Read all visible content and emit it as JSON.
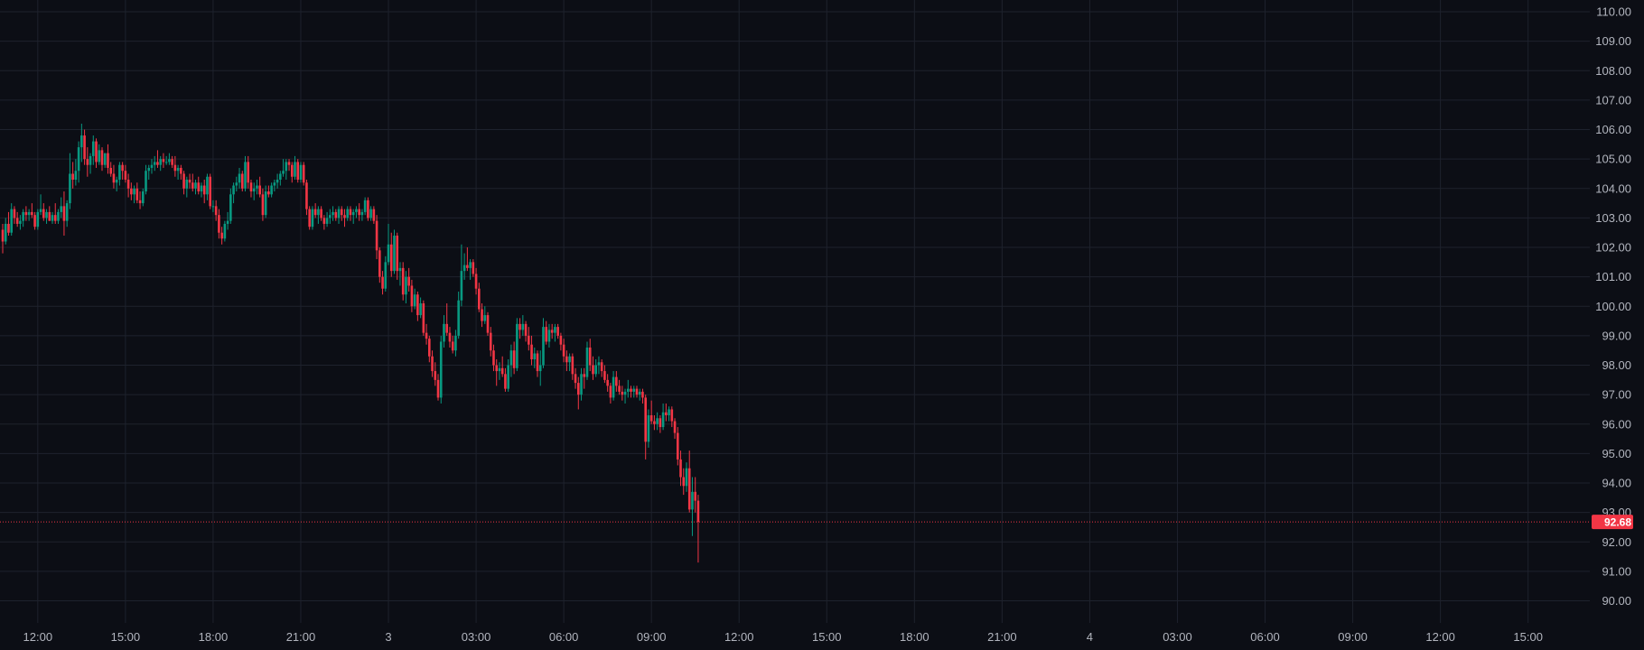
{
  "colors": {
    "background": "#0c0e15",
    "grid": "#1e222d",
    "up": "#089981",
    "down": "#f23645",
    "axis_text": "#b2b5be",
    "last_price_line": "#f23645"
  },
  "last_price": {
    "value": 92.68,
    "label": "92.68"
  },
  "chart_data": {
    "type": "candlestick",
    "ylim": [
      89.25,
      110.4
    ],
    "y_ticks": [
      "90.00",
      "91.00",
      "92.00",
      "93.00",
      "94.00",
      "95.00",
      "96.00",
      "97.00",
      "98.00",
      "99.00",
      "100.00",
      "101.00",
      "102.00",
      "103.00",
      "104.00",
      "105.00",
      "106.00",
      "107.00",
      "108.00",
      "109.00",
      "110.00"
    ],
    "x_ticks": [
      "12:00",
      "15:00",
      "18:00",
      "21:00",
      "3",
      "03:00",
      "06:00",
      "09:00",
      "12:00",
      "15:00",
      "18:00",
      "21:00",
      "4",
      "03:00",
      "06:00",
      "09:00",
      "12:00",
      "15:00"
    ],
    "x_tick_bar_index": [
      12,
      42,
      72,
      102,
      132,
      162,
      192,
      222,
      252,
      282,
      312,
      342,
      372,
      402,
      432,
      462,
      492,
      522
    ],
    "candles": [
      [
        102.6,
        102.8,
        101.8,
        102.2
      ],
      [
        102.2,
        103.0,
        102.1,
        102.8
      ],
      [
        102.8,
        103.2,
        102.4,
        102.5
      ],
      [
        102.5,
        103.5,
        102.4,
        103.3
      ],
      [
        103.3,
        103.4,
        102.8,
        103.0
      ],
      [
        103.0,
        103.2,
        102.7,
        102.8
      ],
      [
        102.8,
        103.1,
        102.6,
        102.9
      ],
      [
        102.9,
        103.3,
        102.7,
        103.2
      ],
      [
        103.2,
        103.4,
        102.9,
        103.1
      ],
      [
        103.1,
        103.3,
        102.9,
        103.2
      ],
      [
        103.2,
        103.5,
        103.0,
        103.1
      ],
      [
        103.1,
        103.2,
        102.6,
        102.7
      ],
      [
        102.7,
        103.3,
        102.6,
        103.2
      ],
      [
        103.2,
        103.8,
        103.1,
        103.3
      ],
      [
        103.3,
        103.5,
        102.9,
        103.0
      ],
      [
        103.0,
        103.3,
        102.8,
        103.2
      ],
      [
        103.2,
        103.4,
        102.9,
        102.9
      ],
      [
        102.9,
        103.2,
        102.8,
        103.1
      ],
      [
        103.1,
        103.5,
        102.8,
        102.9
      ],
      [
        102.9,
        103.3,
        102.8,
        103.2
      ],
      [
        103.2,
        103.7,
        103.0,
        103.4
      ],
      [
        103.4,
        103.9,
        102.4,
        102.9
      ],
      [
        102.9,
        103.6,
        102.7,
        103.5
      ],
      [
        103.5,
        105.2,
        103.3,
        104.5
      ],
      [
        104.5,
        104.9,
        104.0,
        104.3
      ],
      [
        104.3,
        105.0,
        104.1,
        104.6
      ],
      [
        104.6,
        105.6,
        104.2,
        105.4
      ],
      [
        105.4,
        106.2,
        104.9,
        105.8
      ],
      [
        105.8,
        106.0,
        104.8,
        105.0
      ],
      [
        105.0,
        105.4,
        104.4,
        104.8
      ],
      [
        104.8,
        105.2,
        104.5,
        105.1
      ],
      [
        105.1,
        105.8,
        104.8,
        105.6
      ],
      [
        105.6,
        105.7,
        104.7,
        104.9
      ],
      [
        104.9,
        105.5,
        104.8,
        105.3
      ],
      [
        105.3,
        105.4,
        104.6,
        104.8
      ],
      [
        104.8,
        105.2,
        104.7,
        105.2
      ],
      [
        105.2,
        105.5,
        104.5,
        104.7
      ],
      [
        104.7,
        104.9,
        104.4,
        104.5
      ],
      [
        104.5,
        104.8,
        104.0,
        104.2
      ],
      [
        104.2,
        104.4,
        103.9,
        104.3
      ],
      [
        104.3,
        104.9,
        104.1,
        104.8
      ],
      [
        104.8,
        104.9,
        104.3,
        104.6
      ],
      [
        104.6,
        104.8,
        104.2,
        104.3
      ],
      [
        104.3,
        104.5,
        103.7,
        104.0
      ],
      [
        104.0,
        104.2,
        103.6,
        103.8
      ],
      [
        103.8,
        104.1,
        103.5,
        104.0
      ],
      [
        104.0,
        104.2,
        103.5,
        103.6
      ],
      [
        103.6,
        103.9,
        103.3,
        103.5
      ],
      [
        103.5,
        104.0,
        103.4,
        103.9
      ],
      [
        103.9,
        104.8,
        103.8,
        104.6
      ],
      [
        104.6,
        104.8,
        104.3,
        104.7
      ],
      [
        104.7,
        105.0,
        104.5,
        104.8
      ],
      [
        104.8,
        105.1,
        104.6,
        104.9
      ],
      [
        104.9,
        105.3,
        104.7,
        104.8
      ],
      [
        104.8,
        105.1,
        104.6,
        105.0
      ],
      [
        105.0,
        105.2,
        104.7,
        104.9
      ],
      [
        104.9,
        105.1,
        104.8,
        104.9
      ],
      [
        104.9,
        105.2,
        104.8,
        105.0
      ],
      [
        105.0,
        105.1,
        104.7,
        104.8
      ],
      [
        104.8,
        105.1,
        104.4,
        104.6
      ],
      [
        104.6,
        104.8,
        104.3,
        104.7
      ],
      [
        104.7,
        104.8,
        104.3,
        104.5
      ],
      [
        104.5,
        104.6,
        103.8,
        104.0
      ],
      [
        104.0,
        104.4,
        103.7,
        104.3
      ],
      [
        104.3,
        104.5,
        104.0,
        104.2
      ],
      [
        104.2,
        104.5,
        103.9,
        104.0
      ],
      [
        104.0,
        104.3,
        103.8,
        104.2
      ],
      [
        104.2,
        104.4,
        103.8,
        103.9
      ],
      [
        103.9,
        104.2,
        103.7,
        104.1
      ],
      [
        104.1,
        104.3,
        103.5,
        103.8
      ],
      [
        103.8,
        104.5,
        103.6,
        104.4
      ],
      [
        104.4,
        104.5,
        103.3,
        103.4
      ],
      [
        103.4,
        103.6,
        103.2,
        103.4
      ],
      [
        103.4,
        103.6,
        102.9,
        103.1
      ],
      [
        103.1,
        103.3,
        102.3,
        102.5
      ],
      [
        102.5,
        102.7,
        102.1,
        102.3
      ],
      [
        102.3,
        102.9,
        102.2,
        102.8
      ],
      [
        102.8,
        103.2,
        102.6,
        102.9
      ],
      [
        102.9,
        104.0,
        102.8,
        103.8
      ],
      [
        103.8,
        104.2,
        103.5,
        104.1
      ],
      [
        104.1,
        104.4,
        103.9,
        104.2
      ],
      [
        104.2,
        104.7,
        104.0,
        104.5
      ],
      [
        104.5,
        104.6,
        103.9,
        104.0
      ],
      [
        104.0,
        105.1,
        103.9,
        104.9
      ],
      [
        104.9,
        105.1,
        104.0,
        104.2
      ],
      [
        104.2,
        104.3,
        103.7,
        103.9
      ],
      [
        103.9,
        104.2,
        103.6,
        104.0
      ],
      [
        104.0,
        104.3,
        103.8,
        104.1
      ],
      [
        104.1,
        104.4,
        103.7,
        103.8
      ],
      [
        103.8,
        104.0,
        102.9,
        103.1
      ],
      [
        103.1,
        104.1,
        103.0,
        103.9
      ],
      [
        103.9,
        104.1,
        103.7,
        103.8
      ],
      [
        103.8,
        104.2,
        103.7,
        104.1
      ],
      [
        104.1,
        104.3,
        103.9,
        104.2
      ],
      [
        104.2,
        104.5,
        104.0,
        104.3
      ],
      [
        104.3,
        104.6,
        104.1,
        104.5
      ],
      [
        104.5,
        105.0,
        104.4,
        104.6
      ],
      [
        104.6,
        105.0,
        104.3,
        104.9
      ],
      [
        104.9,
        105.0,
        104.6,
        104.8
      ],
      [
        104.8,
        104.9,
        104.2,
        104.4
      ],
      [
        104.4,
        105.1,
        104.3,
        104.9
      ],
      [
        104.9,
        105.0,
        104.2,
        104.3
      ],
      [
        104.3,
        104.9,
        104.2,
        104.8
      ],
      [
        104.8,
        104.9,
        104.1,
        104.2
      ],
      [
        104.2,
        104.3,
        103.1,
        103.3
      ],
      [
        103.3,
        103.4,
        102.6,
        102.7
      ],
      [
        102.7,
        103.4,
        102.6,
        103.3
      ],
      [
        103.3,
        103.5,
        103.0,
        103.1
      ],
      [
        103.1,
        103.4,
        102.8,
        103.3
      ],
      [
        103.3,
        103.4,
        102.9,
        103.0
      ],
      [
        103.0,
        103.1,
        102.6,
        102.8
      ],
      [
        102.8,
        103.2,
        102.7,
        103.0
      ],
      [
        103.0,
        103.3,
        102.8,
        103.1
      ],
      [
        103.1,
        103.4,
        102.9,
        103.2
      ],
      [
        103.2,
        103.3,
        102.9,
        103.0
      ],
      [
        103.0,
        103.4,
        102.8,
        103.3
      ],
      [
        103.3,
        103.4,
        102.9,
        103.1
      ],
      [
        103.1,
        103.3,
        102.7,
        103.0
      ],
      [
        103.0,
        103.4,
        102.9,
        103.3
      ],
      [
        103.3,
        103.4,
        102.9,
        103.1
      ],
      [
        103.1,
        103.3,
        102.8,
        103.2
      ],
      [
        103.2,
        103.4,
        103.0,
        103.3
      ],
      [
        103.3,
        103.5,
        102.9,
        103.1
      ],
      [
        103.1,
        103.3,
        102.9,
        103.2
      ],
      [
        103.2,
        103.7,
        103.1,
        103.6
      ],
      [
        103.6,
        103.7,
        102.9,
        103.0
      ],
      [
        103.0,
        103.4,
        102.9,
        103.3
      ],
      [
        103.3,
        103.4,
        102.8,
        102.9
      ],
      [
        102.9,
        103.1,
        101.6,
        101.9
      ],
      [
        101.9,
        102.0,
        100.8,
        101.0
      ],
      [
        101.0,
        101.2,
        100.4,
        100.6
      ],
      [
        100.6,
        101.7,
        100.5,
        101.5
      ],
      [
        101.5,
        102.8,
        101.4,
        102.1
      ],
      [
        102.1,
        102.5,
        101.0,
        101.2
      ],
      [
        101.2,
        102.6,
        101.1,
        102.4
      ],
      [
        102.4,
        102.5,
        100.9,
        101.2
      ],
      [
        101.2,
        101.5,
        100.7,
        101.3
      ],
      [
        101.3,
        101.5,
        100.2,
        100.4
      ],
      [
        100.4,
        101.2,
        100.1,
        101.0
      ],
      [
        101.0,
        101.3,
        100.5,
        100.7
      ],
      [
        100.7,
        100.9,
        99.8,
        100.0
      ],
      [
        100.0,
        100.6,
        99.9,
        100.4
      ],
      [
        100.4,
        100.5,
        99.5,
        99.7
      ],
      [
        99.7,
        100.3,
        99.6,
        100.1
      ],
      [
        100.1,
        100.2,
        99.0,
        99.1
      ],
      [
        99.1,
        99.4,
        98.7,
        98.9
      ],
      [
        98.9,
        99.0,
        98.1,
        98.3
      ],
      [
        98.3,
        98.5,
        97.6,
        97.8
      ],
      [
        97.8,
        98.1,
        97.3,
        97.5
      ],
      [
        97.5,
        97.7,
        96.8,
        96.9
      ],
      [
        96.9,
        99.0,
        96.7,
        98.8
      ],
      [
        98.8,
        99.7,
        98.6,
        99.4
      ],
      [
        99.4,
        100.1,
        99.0,
        99.1
      ],
      [
        99.1,
        99.3,
        98.6,
        98.8
      ],
      [
        98.8,
        99.0,
        98.4,
        98.5
      ],
      [
        98.5,
        99.2,
        98.3,
        99.0
      ],
      [
        99.0,
        100.5,
        98.9,
        100.2
      ],
      [
        100.2,
        102.1,
        100.0,
        101.2
      ],
      [
        101.2,
        101.8,
        100.9,
        101.4
      ],
      [
        101.4,
        102.0,
        101.2,
        101.3
      ],
      [
        101.3,
        101.6,
        100.9,
        101.5
      ],
      [
        101.5,
        101.6,
        101.0,
        101.1
      ],
      [
        101.1,
        101.3,
        100.4,
        100.6
      ],
      [
        100.6,
        100.8,
        99.8,
        99.9
      ],
      [
        99.9,
        100.1,
        99.3,
        99.5
      ],
      [
        99.5,
        100.0,
        99.4,
        99.7
      ],
      [
        99.7,
        99.8,
        99.0,
        99.1
      ],
      [
        99.1,
        99.3,
        98.3,
        98.5
      ],
      [
        98.5,
        98.7,
        97.8,
        98.0
      ],
      [
        98.0,
        98.2,
        97.3,
        97.8
      ],
      [
        97.8,
        98.1,
        97.5,
        97.9
      ],
      [
        97.9,
        98.3,
        97.6,
        97.7
      ],
      [
        97.7,
        97.9,
        97.1,
        97.2
      ],
      [
        97.2,
        98.2,
        97.1,
        98.0
      ],
      [
        98.0,
        98.7,
        97.6,
        98.5
      ],
      [
        98.5,
        98.8,
        97.7,
        97.9
      ],
      [
        97.9,
        99.6,
        97.8,
        99.4
      ],
      [
        99.4,
        99.6,
        98.9,
        99.2
      ],
      [
        99.2,
        99.7,
        99.0,
        99.4
      ],
      [
        99.4,
        99.5,
        98.8,
        99.0
      ],
      [
        99.0,
        99.3,
        98.5,
        98.7
      ],
      [
        98.7,
        99.0,
        98.0,
        98.2
      ],
      [
        98.2,
        98.6,
        97.9,
        98.4
      ],
      [
        98.4,
        98.5,
        97.6,
        97.8
      ],
      [
        97.8,
        98.5,
        97.3,
        98.0
      ],
      [
        98.0,
        99.6,
        97.9,
        99.3
      ],
      [
        99.3,
        99.5,
        98.7,
        98.8
      ],
      [
        98.8,
        99.4,
        98.6,
        99.2
      ],
      [
        99.2,
        99.4,
        98.9,
        99.1
      ],
      [
        99.1,
        99.4,
        98.8,
        99.3
      ],
      [
        99.3,
        99.4,
        98.9,
        99.0
      ],
      [
        99.0,
        99.1,
        98.5,
        98.7
      ],
      [
        98.7,
        98.9,
        98.1,
        98.3
      ],
      [
        98.3,
        98.5,
        97.8,
        98.1
      ],
      [
        98.1,
        98.4,
        97.8,
        98.3
      ],
      [
        98.3,
        98.4,
        97.5,
        97.7
      ],
      [
        97.7,
        97.9,
        97.2,
        97.4
      ],
      [
        97.4,
        97.6,
        96.5,
        97.0
      ],
      [
        97.0,
        97.9,
        96.8,
        97.7
      ],
      [
        97.7,
        97.9,
        97.2,
        97.6
      ],
      [
        97.6,
        98.8,
        97.5,
        98.6
      ],
      [
        98.6,
        98.9,
        97.8,
        98.0
      ],
      [
        98.0,
        98.3,
        97.5,
        97.7
      ],
      [
        97.7,
        98.2,
        97.6,
        98.0
      ],
      [
        98.0,
        98.3,
        97.7,
        98.1
      ],
      [
        98.1,
        98.2,
        97.6,
        97.8
      ],
      [
        97.8,
        98.0,
        97.4,
        97.5
      ],
      [
        97.5,
        97.7,
        97.1,
        97.3
      ],
      [
        97.3,
        97.4,
        96.7,
        96.9
      ],
      [
        96.9,
        97.8,
        96.8,
        97.6
      ],
      [
        97.6,
        97.8,
        97.1,
        97.3
      ],
      [
        97.3,
        97.5,
        97.0,
        97.1
      ],
      [
        97.1,
        97.3,
        96.8,
        97.0
      ],
      [
        97.0,
        97.2,
        96.7,
        97.1
      ],
      [
        97.1,
        97.5,
        96.9,
        97.2
      ],
      [
        97.2,
        97.3,
        96.9,
        97.1
      ],
      [
        97.1,
        97.3,
        96.9,
        97.2
      ],
      [
        97.2,
        97.3,
        96.9,
        97.0
      ],
      [
        97.0,
        97.2,
        96.8,
        97.1
      ],
      [
        97.1,
        97.2,
        96.7,
        96.9
      ],
      [
        96.9,
        97.0,
        94.8,
        95.4
      ],
      [
        95.4,
        96.5,
        95.2,
        96.3
      ],
      [
        96.3,
        96.8,
        96.0,
        96.1
      ],
      [
        96.1,
        96.3,
        95.8,
        96.0
      ],
      [
        96.0,
        96.4,
        95.8,
        96.2
      ],
      [
        96.2,
        96.3,
        95.7,
        95.9
      ],
      [
        95.9,
        96.7,
        95.8,
        96.4
      ],
      [
        96.4,
        96.7,
        96.1,
        96.3
      ],
      [
        96.3,
        96.6,
        96.1,
        96.5
      ],
      [
        96.5,
        96.6,
        95.9,
        96.1
      ],
      [
        96.1,
        96.2,
        95.5,
        95.7
      ],
      [
        95.7,
        95.9,
        94.6,
        94.8
      ],
      [
        94.8,
        95.1,
        93.9,
        94.2
      ],
      [
        94.2,
        94.5,
        93.6,
        93.9
      ],
      [
        93.9,
        94.7,
        93.7,
        94.5
      ],
      [
        94.5,
        95.1,
        93.0,
        93.1
      ],
      [
        93.1,
        94.2,
        92.2,
        93.7
      ],
      [
        93.7,
        94.2,
        93.0,
        93.4
      ],
      [
        93.4,
        93.6,
        91.3,
        92.68
      ]
    ]
  }
}
